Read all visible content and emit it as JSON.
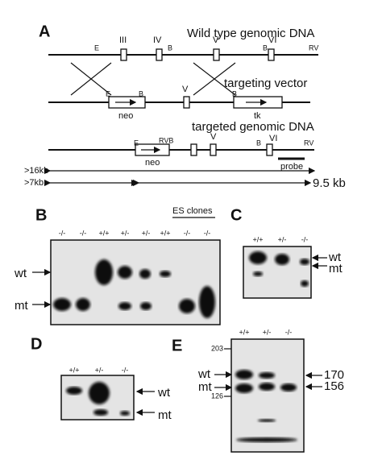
{
  "panel_a": {
    "label": "A",
    "wild_type": {
      "title": "Wild type genomic DNA",
      "exons": [
        "III",
        "IV",
        "V",
        "VI"
      ],
      "sites": [
        "E",
        "B",
        "B",
        "RV"
      ]
    },
    "vector": {
      "title": "targeting vector",
      "sites": [
        "E",
        "B",
        "V",
        "B"
      ],
      "neo": "neo",
      "tk": "tk"
    },
    "targeted": {
      "title": "targeted genomic DNA",
      "sites": [
        "E",
        "RVB",
        "V",
        "B",
        "VI",
        "RV"
      ],
      "neo": "neo",
      "probe": "probe"
    },
    "fragments": [
      ">16kb",
      ">7kb",
      "9.5 kb"
    ]
  },
  "panel_b": {
    "label": "B",
    "caption": "ES clones",
    "lanes": [
      "-/-",
      "-/-",
      "+/+",
      "+/-",
      "+/-",
      "+/+",
      "-/-",
      "-/-"
    ],
    "bands": [
      "wt",
      "mt"
    ]
  },
  "panel_c": {
    "label": "C",
    "lanes": [
      "+/+",
      "+/-",
      "-/-"
    ],
    "bands": [
      "wt",
      "mt"
    ]
  },
  "panel_d": {
    "label": "D",
    "lanes": [
      "+/+",
      "+/-",
      "-/-"
    ],
    "bands": [
      "wt",
      "mt"
    ]
  },
  "panel_e": {
    "label": "E",
    "lanes": [
      "+/+",
      "+/-",
      "-/-"
    ],
    "markers": [
      "203",
      "126"
    ],
    "bands": [
      "wt",
      "mt"
    ],
    "sizes": [
      "170",
      "156"
    ]
  }
}
